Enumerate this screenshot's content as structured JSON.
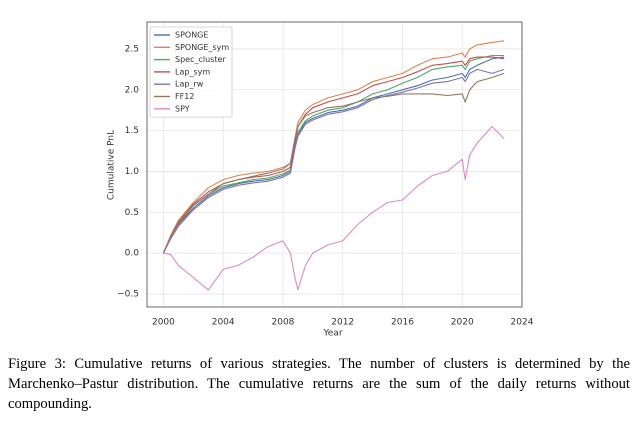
{
  "chart_data": {
    "type": "line",
    "xlabel": "Year",
    "ylabel": "Cumulative PnL",
    "x": [
      2000,
      2000.5,
      2001,
      2002,
      2003,
      2004,
      2005,
      2006,
      2007,
      2008,
      2008.5,
      2008.8,
      2009,
      2009.5,
      2010,
      2011,
      2012,
      2013,
      2014,
      2015,
      2016,
      2017,
      2018,
      2019,
      2020,
      2020.2,
      2020.5,
      2021,
      2022,
      2022.8
    ],
    "series": [
      {
        "name": "SPONGE",
        "color": "#4c72b0",
        "values": [
          0,
          0.2,
          0.35,
          0.55,
          0.7,
          0.8,
          0.85,
          0.88,
          0.9,
          0.95,
          1.0,
          1.3,
          1.45,
          1.6,
          1.65,
          1.72,
          1.75,
          1.8,
          1.9,
          1.95,
          2.0,
          2.05,
          2.12,
          2.15,
          2.2,
          2.15,
          2.25,
          2.3,
          2.38,
          2.4
        ]
      },
      {
        "name": "SPONGE_sym",
        "color": "#dd8452",
        "values": [
          0,
          0.22,
          0.4,
          0.62,
          0.8,
          0.9,
          0.95,
          0.98,
          1.0,
          1.05,
          1.1,
          1.4,
          1.6,
          1.75,
          1.82,
          1.9,
          1.95,
          2.0,
          2.1,
          2.15,
          2.2,
          2.3,
          2.38,
          2.4,
          2.45,
          2.4,
          2.5,
          2.55,
          2.58,
          2.6
        ]
      },
      {
        "name": "Spec_cluster",
        "color": "#55a868",
        "values": [
          0,
          0.2,
          0.36,
          0.58,
          0.72,
          0.82,
          0.86,
          0.9,
          0.92,
          0.97,
          1.02,
          1.32,
          1.48,
          1.62,
          1.68,
          1.75,
          1.78,
          1.85,
          1.95,
          2.0,
          2.08,
          2.15,
          2.25,
          2.28,
          2.3,
          2.25,
          2.35,
          2.38,
          2.42,
          2.42
        ]
      },
      {
        "name": "Lap_sym",
        "color": "#c44e52",
        "values": [
          0,
          0.21,
          0.38,
          0.6,
          0.75,
          0.85,
          0.9,
          0.93,
          0.95,
          1.0,
          1.05,
          1.35,
          1.55,
          1.7,
          1.78,
          1.85,
          1.9,
          1.95,
          2.05,
          2.1,
          2.15,
          2.22,
          2.3,
          2.32,
          2.35,
          2.3,
          2.38,
          2.4,
          2.4,
          2.38
        ]
      },
      {
        "name": "Lap_rw",
        "color": "#8172b3",
        "values": [
          0,
          0.18,
          0.33,
          0.53,
          0.68,
          0.78,
          0.83,
          0.86,
          0.88,
          0.93,
          0.98,
          1.28,
          1.43,
          1.58,
          1.63,
          1.7,
          1.73,
          1.78,
          1.88,
          1.93,
          1.97,
          2.02,
          2.08,
          2.1,
          2.15,
          2.1,
          2.2,
          2.25,
          2.2,
          2.25
        ]
      },
      {
        "name": "FF12",
        "color": "#937860",
        "values": [
          0,
          0.2,
          0.36,
          0.58,
          0.72,
          0.85,
          0.9,
          0.94,
          0.98,
          1.03,
          1.1,
          1.4,
          1.55,
          1.68,
          1.72,
          1.78,
          1.8,
          1.85,
          1.9,
          1.92,
          1.95,
          1.95,
          1.95,
          1.93,
          1.95,
          1.85,
          2.0,
          2.1,
          2.15,
          2.2
        ]
      },
      {
        "name": "SPY",
        "color": "#da8bc3",
        "values": [
          0,
          -0.02,
          -0.15,
          -0.3,
          -0.45,
          -0.2,
          -0.15,
          -0.05,
          0.08,
          0.15,
          0.0,
          -0.3,
          -0.45,
          -0.15,
          0.0,
          0.1,
          0.15,
          0.35,
          0.5,
          0.62,
          0.65,
          0.82,
          0.95,
          1.0,
          1.15,
          0.9,
          1.2,
          1.35,
          1.55,
          1.4
        ]
      }
    ],
    "xlim": [
      1998.9,
      2024
    ],
    "xticks": [
      2000,
      2004,
      2008,
      2012,
      2016,
      2020,
      2024
    ],
    "ylim": [
      -0.66,
      2.83
    ],
    "yticks": [
      {
        "value": -0.5,
        "label": "−0.5"
      },
      {
        "value": 0,
        "label": "0.0"
      },
      0.5,
      {
        "value": 1,
        "label": "1.0"
      },
      1.5,
      {
        "value": 2,
        "label": "2.0"
      },
      2.5
    ],
    "grid": true,
    "legend": "upper left"
  },
  "caption": "Figure 3: Cumulative returns of various strategies. The number of clusters is determined by the Marchenko–Pastur distribution. The cumulative returns are the sum of the daily returns without compounding."
}
